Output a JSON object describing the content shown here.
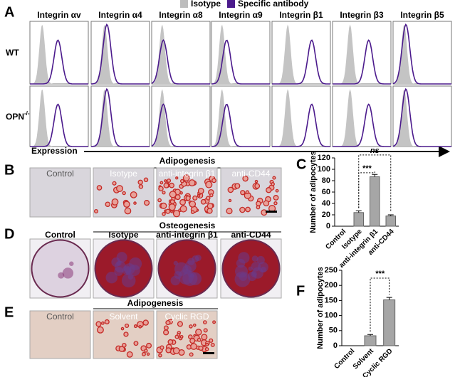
{
  "panel_labels": [
    "A",
    "B",
    "C",
    "D",
    "E",
    "F"
  ],
  "panel_a": {
    "legend": [
      "Isotype",
      "Specific antibody"
    ],
    "columns": [
      "Integrin αv",
      "Integrin α4",
      "Integrin α8",
      "Integrin α9",
      "Integrin β1",
      "Integrin β3",
      "Integrin β5"
    ],
    "rows": [
      {
        "base": "WT"
      },
      {
        "base": "OPN",
        "sup": "-/-"
      }
    ],
    "x_label": "Expression"
  },
  "panel_b": {
    "title": "Adipogenesis",
    "images": [
      "Control",
      "Isotype",
      "anti-integrin β1",
      "anti-CD44"
    ]
  },
  "panel_d": {
    "title": "Osteogenesis",
    "images": [
      "Control",
      "Isotype",
      "anti-integrin β1",
      "anti-CD44"
    ]
  },
  "panel_e": {
    "title": "Adipogenesis",
    "images": [
      "Control",
      "Solvent",
      "Cyclic RGD"
    ]
  },
  "chart_data": [
    {
      "type": "bar",
      "y_label": "Number of adipocytes",
      "categories": [
        "Control",
        "Isotype",
        "anti-integrin β1",
        "anti-CD44"
      ],
      "values": [
        0,
        24,
        87,
        18
      ],
      "errors": [
        null,
        3,
        4,
        2
      ],
      "color": "#a6a6a6",
      "ylim": [
        0,
        120
      ],
      "yticks": [
        0,
        20,
        40,
        60,
        80,
        100,
        120
      ],
      "annotations": [
        "***",
        "ns"
      ]
    },
    {
      "type": "bar",
      "y_label": "Number of adipocytes",
      "categories": [
        "Control",
        "Solvent",
        "Cyclic RGD"
      ],
      "values": [
        0,
        33,
        152
      ],
      "errors": [
        null,
        4,
        8
      ],
      "color": "#a6a6a6",
      "ylim": [
        0,
        250
      ],
      "yticks": [
        0,
        50,
        100,
        150,
        200,
        250
      ],
      "annotations": [
        "***"
      ]
    }
  ]
}
